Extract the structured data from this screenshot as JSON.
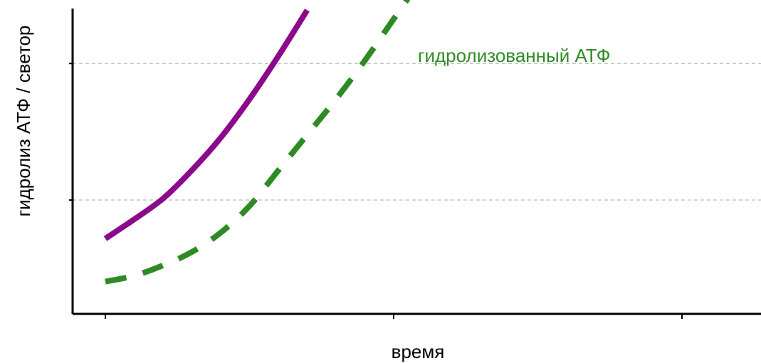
{
  "chart_data": {
    "type": "line",
    "title": "",
    "xlabel": "время",
    "ylabel": "гидролиз АТФ / светор",
    "xlim": [
      0,
      10
    ],
    "ylim": [
      0,
      10
    ],
    "x_ticks": [
      0,
      5,
      10
    ],
    "y_gridlines": [
      3.5,
      8.1
    ],
    "grid": "horizontal dashed",
    "series": [
      {
        "color": "#8b0a8b",
        "style": "solid",
        "x": [
          0,
          0.5,
          1,
          1.5,
          2,
          2.5,
          3,
          3.5
        ],
        "y": [
          2.2,
          2.85,
          3.55,
          4.5,
          5.6,
          6.9,
          8.35,
          9.9
        ]
      },
      {
        "name": "гидролизованный АТФ",
        "color": "#2e8b24",
        "style": "dashed",
        "x": [
          0,
          0.5,
          1,
          1.5,
          2,
          2.5,
          3,
          3.5,
          4,
          4.5,
          5,
          5.5
        ],
        "y": [
          0.75,
          0.95,
          1.3,
          1.75,
          2.4,
          3.3,
          4.5,
          5.7,
          6.9,
          8.2,
          9.6,
          11
        ]
      }
    ]
  }
}
